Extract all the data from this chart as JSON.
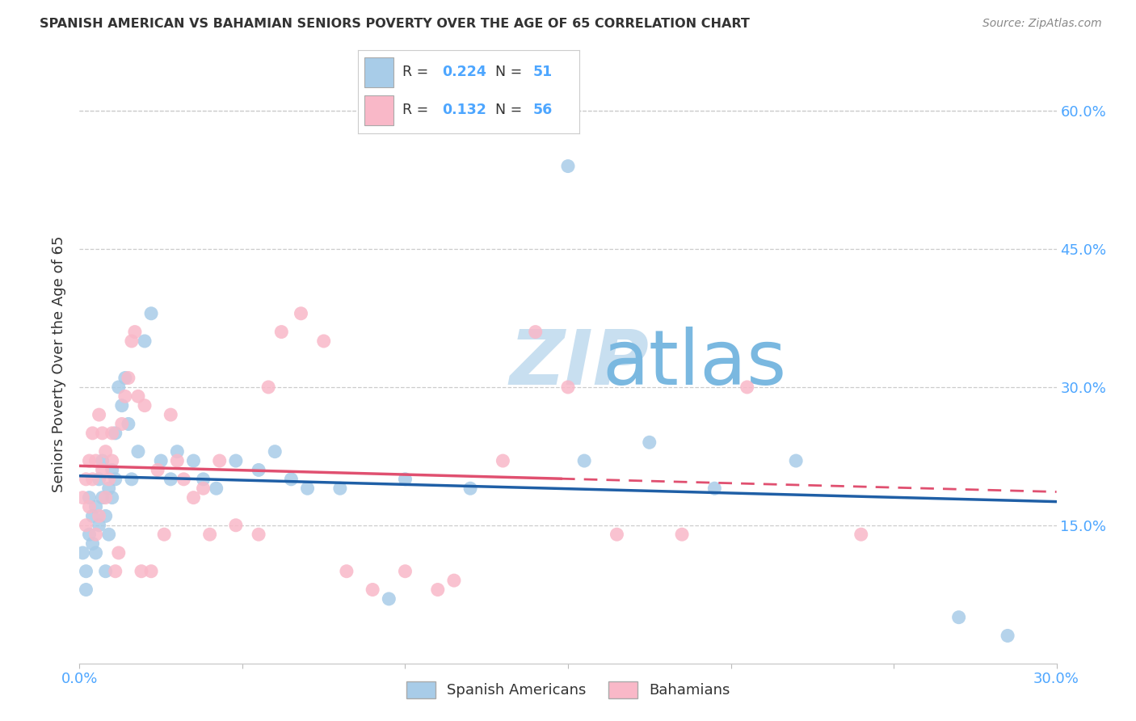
{
  "title": "SPANISH AMERICAN VS BAHAMIAN SENIORS POVERTY OVER THE AGE OF 65 CORRELATION CHART",
  "source": "Source: ZipAtlas.com",
  "ylabel": "Seniors Poverty Over the Age of 65",
  "xlim": [
    0.0,
    0.3
  ],
  "ylim": [
    0.0,
    0.65
  ],
  "xticks": [
    0.0,
    0.05,
    0.1,
    0.15,
    0.2,
    0.25,
    0.3
  ],
  "xticklabels": [
    "0.0%",
    "",
    "",
    "",
    "",
    "",
    "30.0%"
  ],
  "yticks_right": [
    0.15,
    0.3,
    0.45,
    0.6
  ],
  "ytick_labels_right": [
    "15.0%",
    "30.0%",
    "45.0%",
    "60.0%"
  ],
  "blue_color": "#a8cce8",
  "pink_color": "#f9b8c8",
  "trend_blue": "#1f5fa6",
  "trend_pink": "#e05070",
  "axis_color": "#4da6ff",
  "watermark_zip": "#c8dff0",
  "watermark_atlas": "#7ab8e0",
  "spanish_x": [
    0.001,
    0.002,
    0.002,
    0.003,
    0.003,
    0.004,
    0.004,
    0.005,
    0.005,
    0.006,
    0.006,
    0.007,
    0.007,
    0.008,
    0.008,
    0.009,
    0.009,
    0.01,
    0.01,
    0.011,
    0.011,
    0.012,
    0.013,
    0.014,
    0.015,
    0.016,
    0.018,
    0.02,
    0.022,
    0.025,
    0.028,
    0.03,
    0.035,
    0.038,
    0.042,
    0.048,
    0.055,
    0.06,
    0.065,
    0.07,
    0.08,
    0.095,
    0.1,
    0.12,
    0.15,
    0.155,
    0.175,
    0.195,
    0.22,
    0.27,
    0.285
  ],
  "spanish_y": [
    0.12,
    0.1,
    0.08,
    0.14,
    0.18,
    0.16,
    0.13,
    0.12,
    0.17,
    0.15,
    0.2,
    0.18,
    0.22,
    0.16,
    0.1,
    0.19,
    0.14,
    0.21,
    0.18,
    0.2,
    0.25,
    0.3,
    0.28,
    0.31,
    0.26,
    0.2,
    0.23,
    0.35,
    0.38,
    0.22,
    0.2,
    0.23,
    0.22,
    0.2,
    0.19,
    0.22,
    0.21,
    0.23,
    0.2,
    0.19,
    0.19,
    0.07,
    0.2,
    0.19,
    0.54,
    0.22,
    0.24,
    0.19,
    0.22,
    0.05,
    0.03
  ],
  "bahamian_x": [
    0.001,
    0.002,
    0.002,
    0.003,
    0.003,
    0.004,
    0.004,
    0.005,
    0.005,
    0.006,
    0.006,
    0.007,
    0.007,
    0.008,
    0.008,
    0.009,
    0.01,
    0.01,
    0.011,
    0.012,
    0.013,
    0.014,
    0.015,
    0.016,
    0.017,
    0.018,
    0.019,
    0.02,
    0.022,
    0.024,
    0.026,
    0.028,
    0.03,
    0.032,
    0.035,
    0.038,
    0.04,
    0.043,
    0.048,
    0.055,
    0.058,
    0.062,
    0.068,
    0.075,
    0.082,
    0.09,
    0.1,
    0.11,
    0.115,
    0.13,
    0.14,
    0.15,
    0.165,
    0.185,
    0.205,
    0.24
  ],
  "bahamian_y": [
    0.18,
    0.2,
    0.15,
    0.22,
    0.17,
    0.25,
    0.2,
    0.14,
    0.22,
    0.16,
    0.27,
    0.21,
    0.25,
    0.18,
    0.23,
    0.2,
    0.22,
    0.25,
    0.1,
    0.12,
    0.26,
    0.29,
    0.31,
    0.35,
    0.36,
    0.29,
    0.1,
    0.28,
    0.1,
    0.21,
    0.14,
    0.27,
    0.22,
    0.2,
    0.18,
    0.19,
    0.14,
    0.22,
    0.15,
    0.14,
    0.3,
    0.36,
    0.38,
    0.35,
    0.1,
    0.08,
    0.1,
    0.08,
    0.09,
    0.22,
    0.36,
    0.3,
    0.14,
    0.14,
    0.3,
    0.14
  ]
}
